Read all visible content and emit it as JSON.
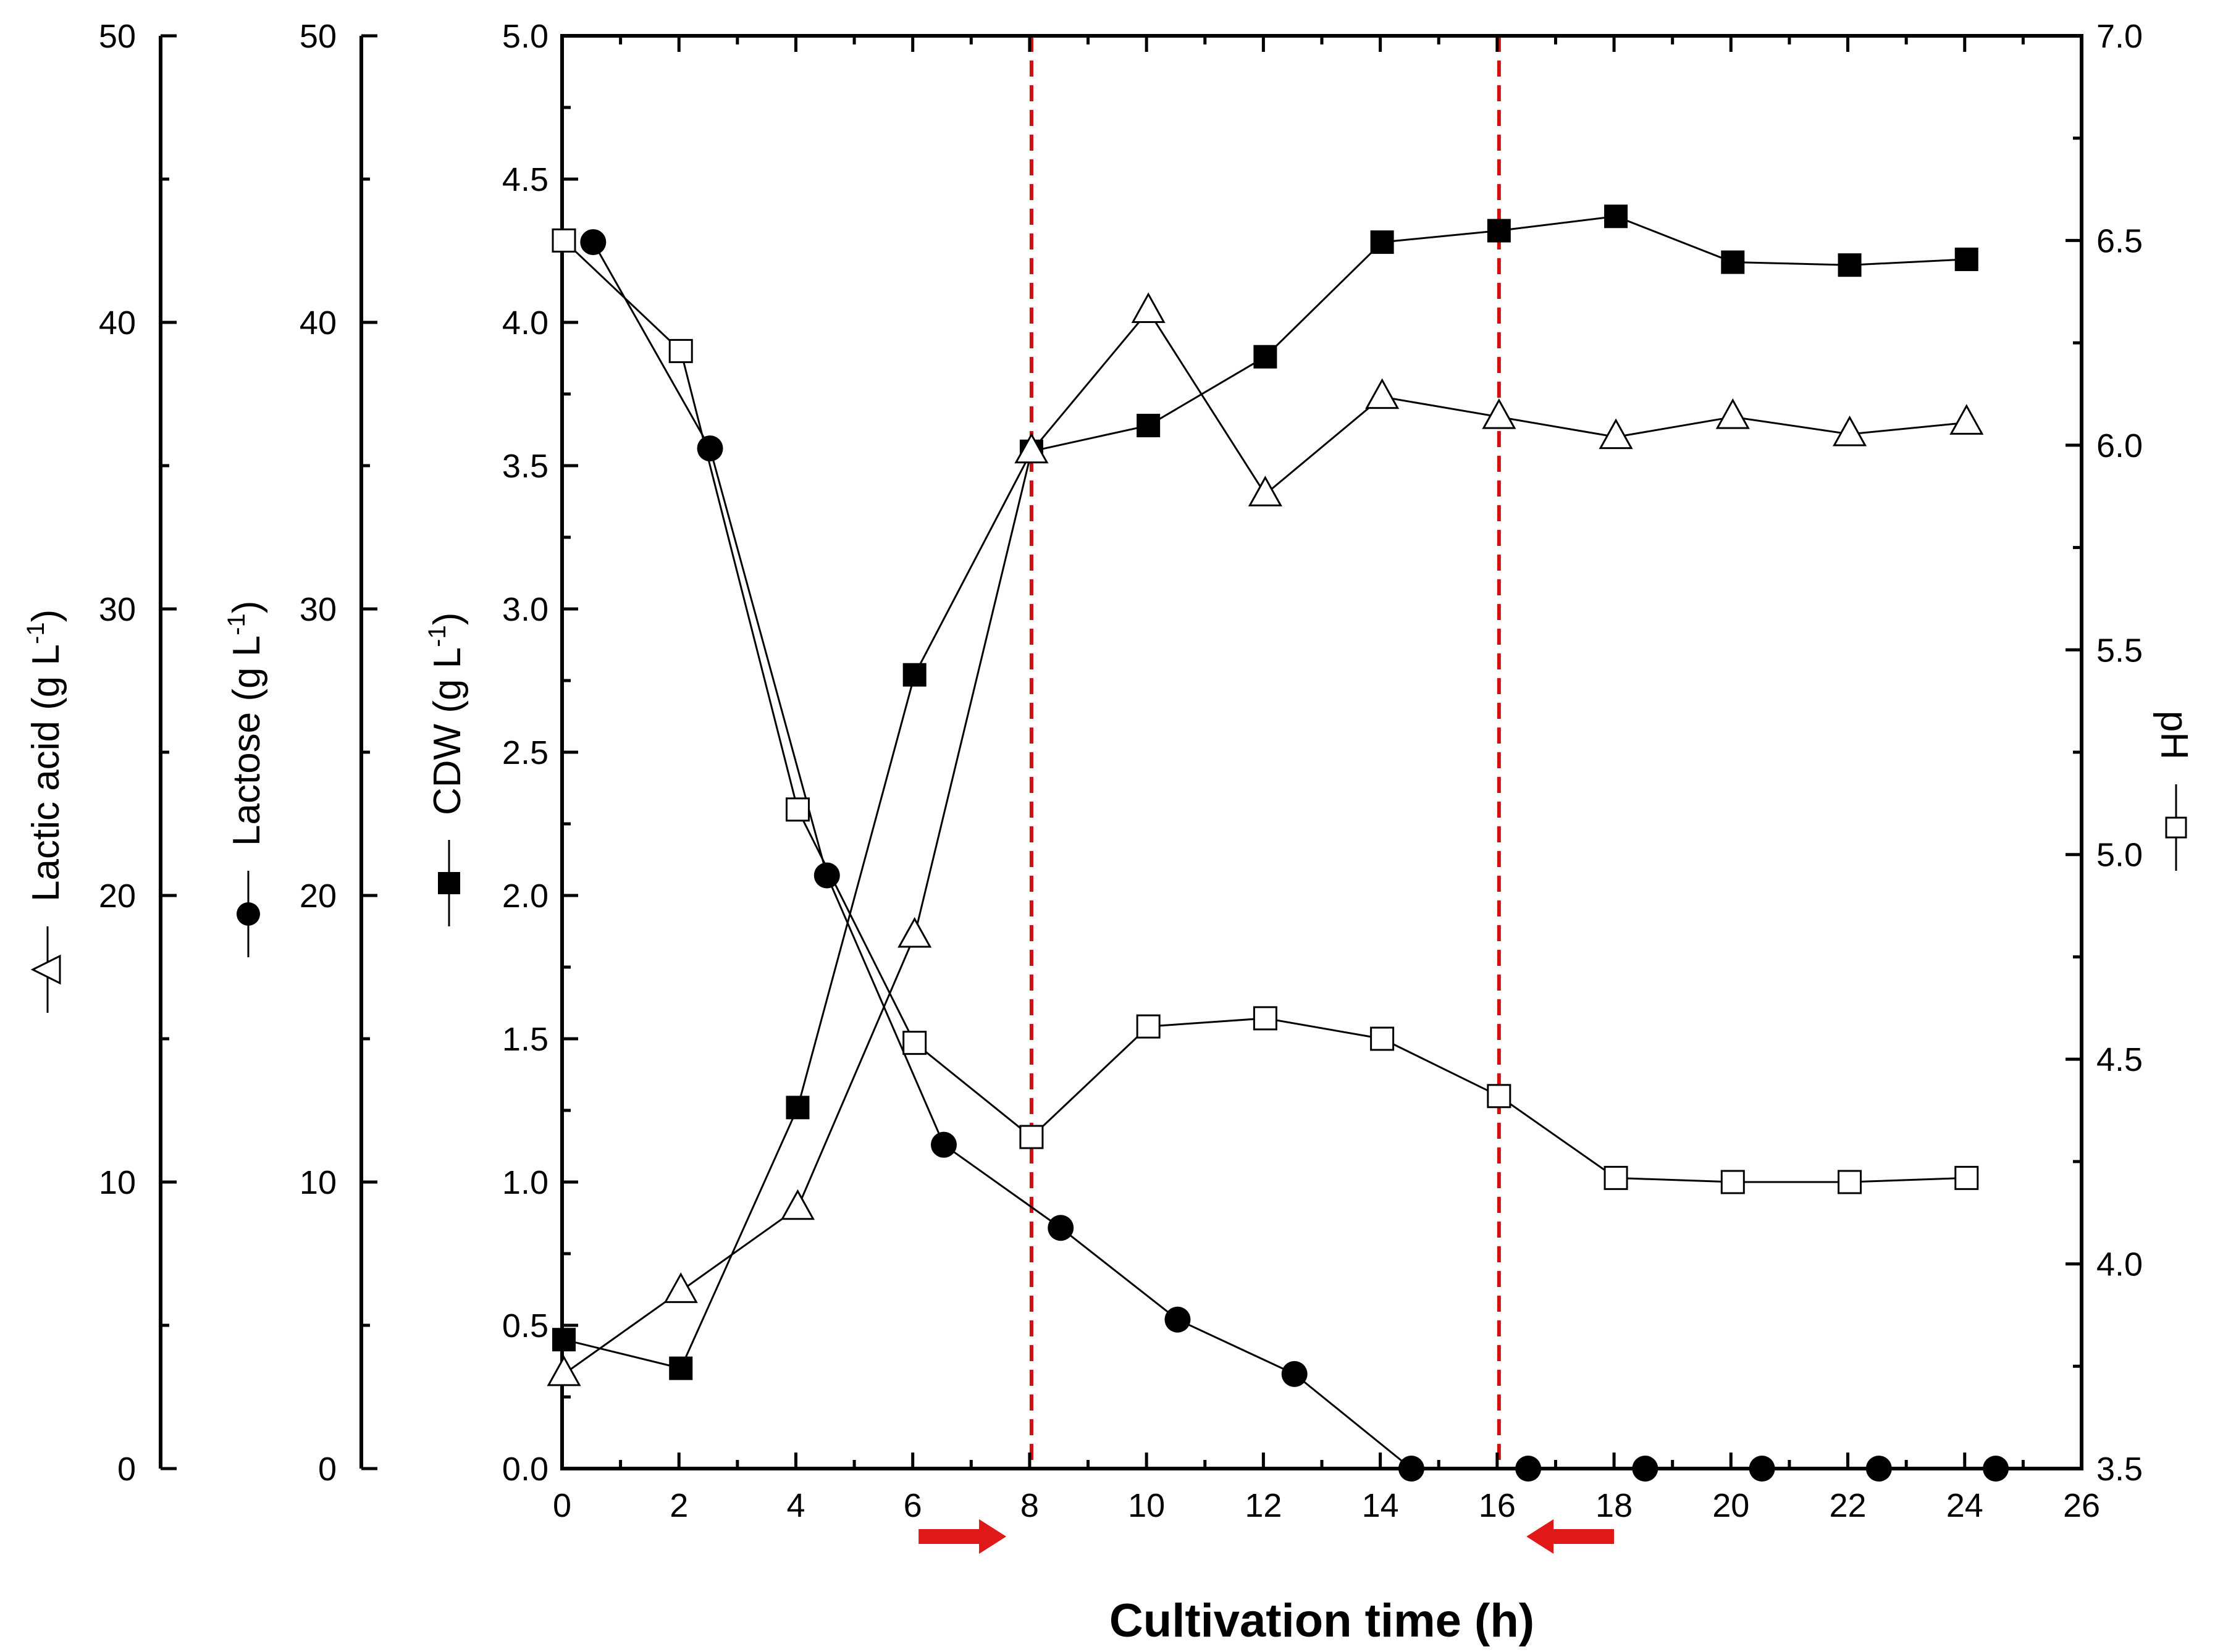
{
  "chart_data": {
    "type": "line",
    "title": "",
    "xlabel": "Cultivation time (h)",
    "xlim": [
      0,
      26
    ],
    "xticks": [
      0,
      2,
      4,
      6,
      8,
      10,
      12,
      14,
      16,
      18,
      20,
      22,
      24,
      26
    ],
    "axes": {
      "cdw": {
        "label": "CDW (g L",
        "sup": "-1",
        "ylim": [
          0,
          5.0
        ],
        "ticks": [
          "0.0",
          "0.5",
          "1.0",
          "1.5",
          "2.0",
          "2.5",
          "3.0",
          "3.5",
          "4.0",
          "4.5",
          "5.0"
        ]
      },
      "lactose": {
        "label": "Lactose (g L",
        "sup": "-1",
        "ylim": [
          0,
          50
        ],
        "ticks": [
          "0",
          "10",
          "20",
          "30",
          "40",
          "50"
        ]
      },
      "lactic": {
        "label": "Lactic acid (g L",
        "sup": "-1",
        "ylim": [
          0,
          50
        ],
        "ticks": [
          "0",
          "10",
          "20",
          "30",
          "40",
          "50"
        ]
      },
      "ph": {
        "label": "pH",
        "ylim": [
          3.5,
          7.0
        ],
        "ticks": [
          "3.5",
          "4.0",
          "4.5",
          "5.0",
          "5.5",
          "6.0",
          "6.5",
          "7.0"
        ]
      }
    },
    "series": [
      {
        "name": "CDW",
        "axis": "cdw",
        "marker": "filled-square",
        "x": [
          0,
          2,
          4,
          6,
          8,
          10,
          12,
          14,
          16,
          18,
          20,
          22,
          24
        ],
        "y": [
          0.45,
          0.35,
          1.26,
          2.77,
          3.55,
          3.64,
          3.88,
          4.28,
          4.32,
          4.37,
          4.21,
          4.2,
          4.22
        ]
      },
      {
        "name": "Lactose",
        "axis": "lactose",
        "marker": "filled-circle",
        "x": [
          0.5,
          2.5,
          4.5,
          6.5,
          8.5,
          10.5,
          12.5,
          14.5,
          16.5,
          18.5,
          20.5,
          22.5,
          24.5
        ],
        "y": [
          42.8,
          35.6,
          20.7,
          11.3,
          8.4,
          5.2,
          3.3,
          0,
          0,
          0,
          0,
          0,
          0
        ]
      },
      {
        "name": "Lactic acid",
        "axis": "lactic",
        "marker": "open-triangle",
        "x": [
          0,
          2,
          4,
          6,
          8,
          10,
          12,
          14,
          16,
          18,
          20,
          22,
          24
        ],
        "y": [
          3.3,
          6.2,
          9.1,
          18.6,
          35.5,
          40.4,
          34.0,
          37.4,
          36.7,
          36.0,
          36.7,
          36.1,
          36.5
        ]
      },
      {
        "name": "pH",
        "axis": "ph",
        "marker": "open-square",
        "x": [
          0,
          2,
          4,
          6,
          8,
          10,
          12,
          14,
          16,
          18,
          20,
          22,
          24
        ],
        "y": [
          6.5,
          6.23,
          5.11,
          4.54,
          4.31,
          4.58,
          4.6,
          4.55,
          4.41,
          4.21,
          4.2,
          4.2,
          4.21
        ]
      }
    ],
    "vlines": [
      8,
      16
    ],
    "arrows": [
      {
        "direction": "right",
        "x_from": 6.1,
        "x_to": 7.6
      },
      {
        "direction": "left",
        "x_from": 18.0,
        "x_to": 16.5
      }
    ],
    "colors": {
      "axis": "#000000",
      "vline": "#d01010",
      "arrow": "#e01818"
    }
  }
}
